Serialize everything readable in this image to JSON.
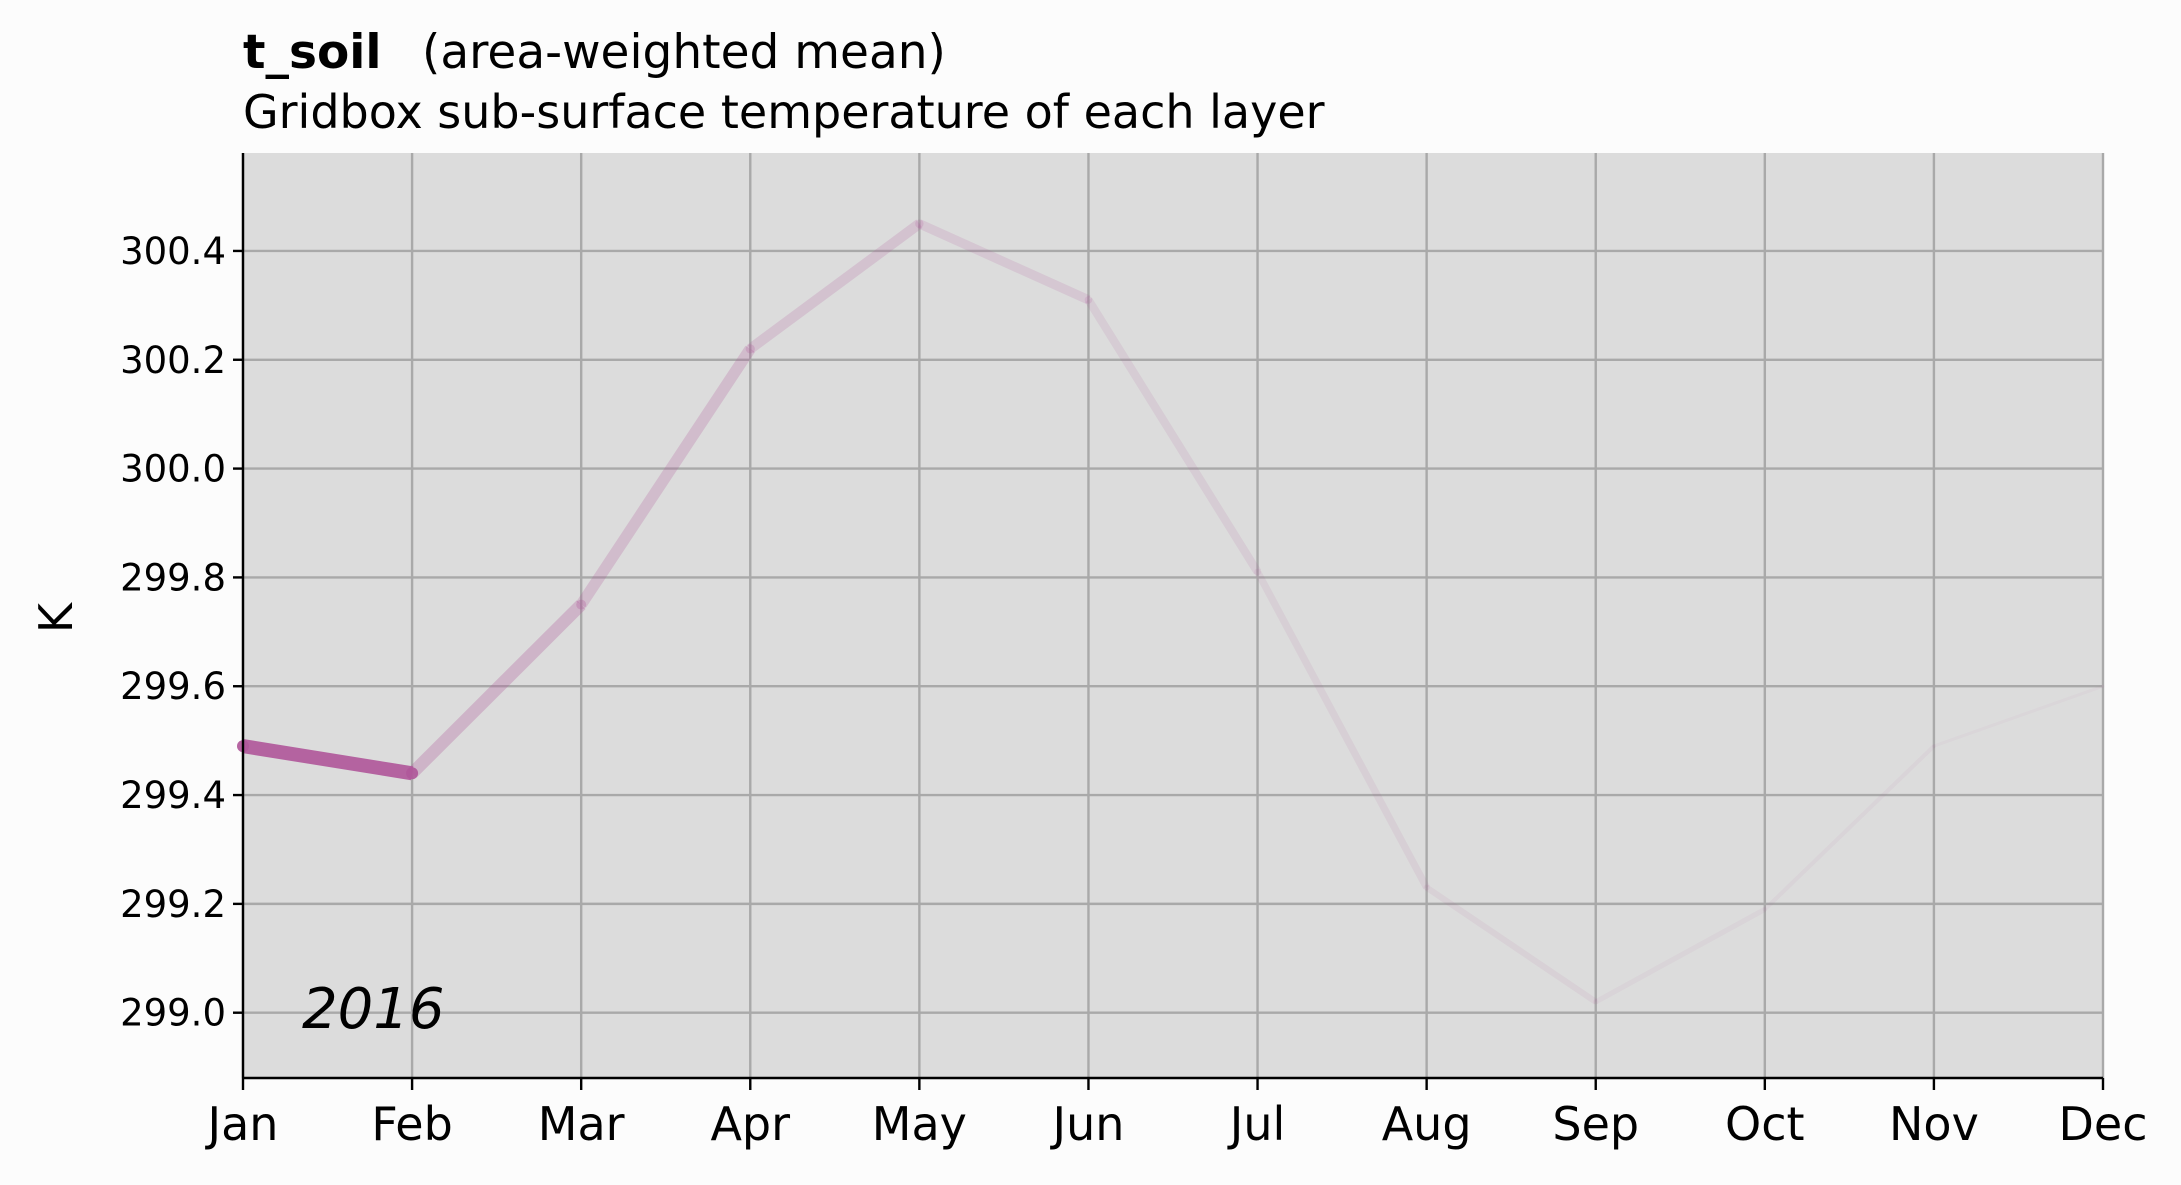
{
  "chart_data": {
    "type": "line",
    "title": "t_soil",
    "title_qualifier": "(area-weighted mean)",
    "subtitle": "Gridbox sub-surface temperature of each layer",
    "ylabel": "K",
    "annotation": "2016",
    "categories": [
      "Jan",
      "Feb",
      "Mar",
      "Apr",
      "May",
      "Jun",
      "Jul",
      "Aug",
      "Sep",
      "Oct",
      "Nov",
      "Dec"
    ],
    "values": [
      299.49,
      299.44,
      299.75,
      300.22,
      300.45,
      300.31,
      299.81,
      299.23,
      299.02,
      299.19,
      299.49,
      299.6
    ],
    "ylim": [
      298.88,
      300.58
    ],
    "yticks": [
      "299.0",
      "299.2",
      "299.4",
      "299.6",
      "299.8",
      "300.0",
      "300.2",
      "300.4"
    ],
    "grid": true,
    "legend": "none",
    "colors": {
      "line": "#b0589a",
      "plot_background": "#dcdcdc",
      "figure_background": "#fcfcfc",
      "grid": "#a9a9a9"
    }
  }
}
